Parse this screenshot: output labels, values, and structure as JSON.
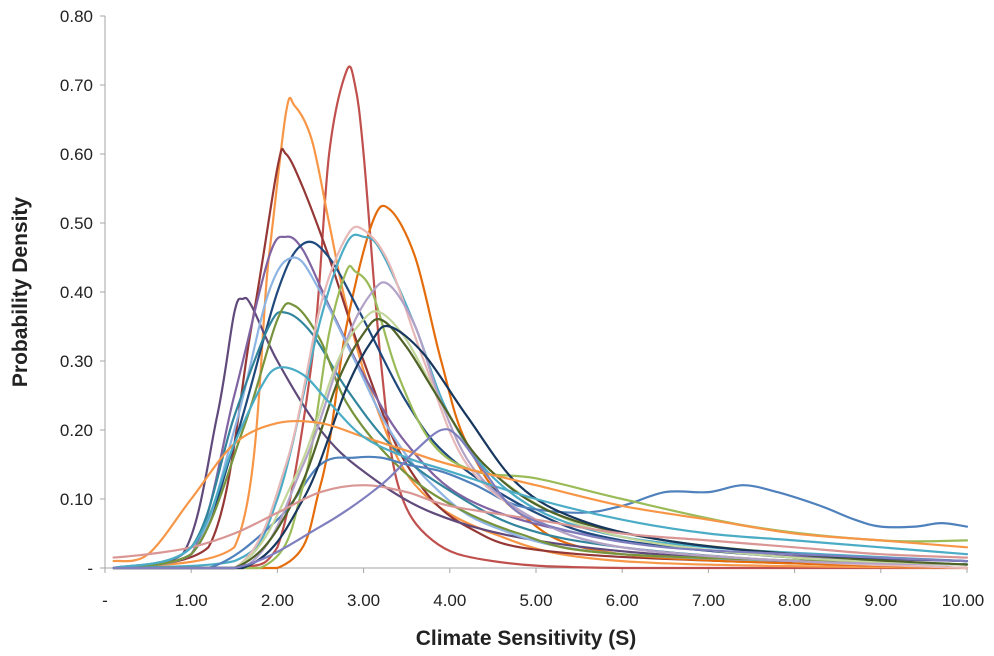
{
  "chart_data": {
    "type": "line",
    "title": "",
    "xlabel": "Climate Sensitivity (S)",
    "ylabel": "Probability Density",
    "xlim": [
      0,
      10
    ],
    "ylim": [
      0,
      0.8
    ],
    "x_ticks": [
      "-",
      "1.00",
      "2.00",
      "3.00",
      "4.00",
      "5.00",
      "6.00",
      "7.00",
      "8.00",
      "9.00",
      "10.00"
    ],
    "y_ticks": [
      "-",
      "0.10",
      "0.20",
      "0.30",
      "0.40",
      "0.50",
      "0.60",
      "0.70",
      "0.80"
    ],
    "grid": false,
    "legend": "none",
    "series": [
      {
        "color": "#c0504d",
        "x": [
          0.1,
          1.5,
          2.0,
          2.4,
          2.6,
          2.8,
          2.9,
          3.0,
          3.2,
          3.4,
          3.8,
          4.5,
          6.0,
          10.0
        ],
        "values": [
          0.0,
          0.0,
          0.03,
          0.3,
          0.6,
          0.72,
          0.7,
          0.6,
          0.3,
          0.12,
          0.04,
          0.01,
          0.0,
          0.0
        ]
      },
      {
        "color": "#f79646",
        "x": [
          0.1,
          1.5,
          1.9,
          2.1,
          2.2,
          2.4,
          2.6,
          2.8,
          3.1,
          3.6,
          4.5,
          6.0,
          10.0
        ],
        "values": [
          0.0,
          0.03,
          0.45,
          0.66,
          0.67,
          0.62,
          0.5,
          0.38,
          0.25,
          0.12,
          0.05,
          0.01,
          0.0
        ]
      },
      {
        "color": "#953735",
        "x": [
          0.1,
          1.2,
          1.7,
          2.0,
          2.1,
          2.3,
          2.6,
          3.0,
          3.5,
          4.2,
          5.5,
          10.0
        ],
        "values": [
          0.0,
          0.03,
          0.35,
          0.58,
          0.6,
          0.55,
          0.45,
          0.3,
          0.15,
          0.06,
          0.02,
          0.0
        ]
      },
      {
        "color": "#e46c0a",
        "x": [
          0.1,
          2.0,
          2.5,
          2.8,
          3.1,
          3.3,
          3.6,
          3.9,
          4.2,
          4.8,
          6.0,
          10.0
        ],
        "values": [
          0.0,
          0.0,
          0.12,
          0.35,
          0.5,
          0.52,
          0.45,
          0.3,
          0.18,
          0.08,
          0.02,
          0.0
        ]
      },
      {
        "color": "#604a7b",
        "x": [
          0.1,
          0.9,
          1.3,
          1.5,
          1.6,
          1.7,
          2.0,
          2.5,
          3.0,
          3.8,
          5.0,
          7.0,
          10.0
        ],
        "values": [
          0.0,
          0.02,
          0.22,
          0.37,
          0.39,
          0.38,
          0.3,
          0.2,
          0.14,
          0.08,
          0.04,
          0.015,
          0.005
        ]
      },
      {
        "color": "#8064a2",
        "x": [
          0.1,
          1.0,
          1.5,
          1.9,
          2.1,
          2.3,
          2.6,
          3.0,
          3.5,
          4.2,
          5.5,
          7.5,
          10.0
        ],
        "values": [
          0.0,
          0.02,
          0.25,
          0.45,
          0.48,
          0.46,
          0.38,
          0.28,
          0.18,
          0.1,
          0.05,
          0.02,
          0.01
        ]
      },
      {
        "color": "#1f497d",
        "x": [
          0.1,
          1.0,
          1.5,
          2.0,
          2.3,
          2.6,
          3.0,
          3.5,
          4.0,
          5.0,
          6.0,
          8.0,
          10.0
        ],
        "values": [
          0.0,
          0.02,
          0.18,
          0.4,
          0.47,
          0.45,
          0.36,
          0.24,
          0.16,
          0.08,
          0.04,
          0.015,
          0.005
        ]
      },
      {
        "color": "#8eb4e3",
        "x": [
          0.1,
          1.0,
          1.5,
          1.9,
          2.2,
          2.5,
          2.9,
          3.3,
          3.8,
          4.5,
          6.0,
          10.0
        ],
        "values": [
          0.0,
          0.02,
          0.2,
          0.4,
          0.45,
          0.4,
          0.3,
          0.2,
          0.12,
          0.06,
          0.02,
          0.005
        ]
      },
      {
        "color": "#31859c",
        "x": [
          0.1,
          1.0,
          1.5,
          1.9,
          2.1,
          2.4,
          2.8,
          3.3,
          3.9,
          4.8,
          6.0,
          8.0,
          10.0
        ],
        "values": [
          0.0,
          0.03,
          0.22,
          0.35,
          0.37,
          0.34,
          0.26,
          0.18,
          0.12,
          0.06,
          0.03,
          0.01,
          0.005
        ]
      },
      {
        "color": "#77933c",
        "x": [
          0.1,
          1.0,
          1.6,
          2.0,
          2.2,
          2.5,
          2.8,
          3.3,
          3.9,
          4.8,
          6.0,
          10.0
        ],
        "values": [
          0.0,
          0.02,
          0.2,
          0.36,
          0.38,
          0.33,
          0.24,
          0.16,
          0.1,
          0.05,
          0.02,
          0.005
        ]
      },
      {
        "color": "#4bacc6",
        "x": [
          0.1,
          1.5,
          2.0,
          2.5,
          2.8,
          3.0,
          3.2,
          3.6,
          4.0,
          4.6,
          5.5,
          7.0,
          10.0
        ],
        "values": [
          0.0,
          0.01,
          0.1,
          0.36,
          0.47,
          0.48,
          0.46,
          0.35,
          0.22,
          0.12,
          0.06,
          0.03,
          0.01
        ]
      },
      {
        "color": "#4f81bd",
        "x": [
          0.1,
          1.2,
          2.0,
          2.5,
          2.9,
          3.2,
          3.5,
          3.9,
          4.3,
          4.8,
          5.5,
          6.0,
          6.5,
          7.0,
          7.4,
          7.8,
          8.3,
          8.7,
          9.0,
          9.4,
          9.7,
          10.0
        ],
        "values": [
          0.0,
          0.0,
          0.07,
          0.15,
          0.16,
          0.16,
          0.15,
          0.14,
          0.12,
          0.09,
          0.08,
          0.09,
          0.11,
          0.11,
          0.12,
          0.11,
          0.09,
          0.07,
          0.06,
          0.06,
          0.065,
          0.06
        ]
      },
      {
        "color": "#9bbb59",
        "x": [
          0.1,
          1.8,
          2.3,
          2.6,
          2.8,
          2.9,
          3.1,
          3.4,
          3.8,
          4.3,
          5.0,
          6.0,
          7.5,
          9.0,
          10.0
        ],
        "values": [
          0.0,
          0.0,
          0.12,
          0.34,
          0.43,
          0.43,
          0.4,
          0.28,
          0.18,
          0.14,
          0.13,
          0.1,
          0.06,
          0.04,
          0.04
        ]
      },
      {
        "color": "#e6b9b8",
        "x": [
          0.1,
          1.5,
          2.1,
          2.5,
          2.8,
          3.0,
          3.3,
          3.7,
          4.2,
          5.0,
          6.0,
          8.0,
          10.0
        ],
        "values": [
          0.0,
          0.0,
          0.15,
          0.38,
          0.48,
          0.49,
          0.44,
          0.3,
          0.15,
          0.07,
          0.03,
          0.01,
          0.0
        ]
      },
      {
        "color": "#b3a2c7",
        "x": [
          0.1,
          1.6,
          2.3,
          2.8,
          3.1,
          3.3,
          3.6,
          3.9,
          4.3,
          5.0,
          6.0,
          8.0,
          10.0
        ],
        "values": [
          0.0,
          0.0,
          0.15,
          0.33,
          0.4,
          0.41,
          0.35,
          0.24,
          0.14,
          0.07,
          0.03,
          0.01,
          0.005
        ]
      },
      {
        "color": "#c3d69b",
        "x": [
          0.1,
          1.5,
          2.2,
          2.7,
          3.0,
          3.2,
          3.5,
          3.9,
          4.4,
          5.2,
          6.2,
          8.0,
          10.0
        ],
        "values": [
          0.0,
          0.0,
          0.13,
          0.3,
          0.36,
          0.37,
          0.33,
          0.24,
          0.15,
          0.08,
          0.04,
          0.015,
          0.005
        ]
      },
      {
        "color": "#4f6228",
        "x": [
          0.1,
          1.5,
          2.2,
          2.7,
          3.0,
          3.2,
          3.5,
          3.9,
          4.4,
          5.2,
          6.5,
          8.5,
          10.0
        ],
        "values": [
          0.0,
          0.0,
          0.1,
          0.27,
          0.34,
          0.36,
          0.32,
          0.24,
          0.15,
          0.08,
          0.04,
          0.015,
          0.005
        ]
      },
      {
        "color": "#17375e",
        "x": [
          0.1,
          1.6,
          2.3,
          2.8,
          3.1,
          3.3,
          3.7,
          4.2,
          4.8,
          5.5,
          6.5,
          8.0,
          10.0
        ],
        "values": [
          0.0,
          0.0,
          0.1,
          0.26,
          0.33,
          0.35,
          0.31,
          0.22,
          0.12,
          0.07,
          0.04,
          0.02,
          0.01
        ]
      },
      {
        "color": "#f79646",
        "x": [
          0.1,
          0.5,
          1.0,
          1.5,
          2.0,
          2.5,
          3.0,
          3.5,
          4.0,
          5.0,
          6.0,
          7.0,
          8.0,
          9.0,
          10.0
        ],
        "values": [
          0.01,
          0.02,
          0.1,
          0.18,
          0.21,
          0.21,
          0.19,
          0.17,
          0.15,
          0.12,
          0.09,
          0.07,
          0.05,
          0.04,
          0.03
        ]
      },
      {
        "color": "#d99694",
        "x": [
          0.1,
          0.5,
          1.0,
          1.5,
          2.0,
          2.5,
          3.0,
          3.5,
          4.0,
          5.0,
          6.0,
          7.0,
          8.0,
          9.0,
          10.0
        ],
        "values": [
          0.015,
          0.02,
          0.03,
          0.05,
          0.08,
          0.11,
          0.12,
          0.11,
          0.09,
          0.07,
          0.05,
          0.04,
          0.03,
          0.02,
          0.015
        ]
      },
      {
        "color": "#4bacc6",
        "x": [
          0.1,
          1.0,
          1.5,
          1.8,
          2.0,
          2.3,
          2.6,
          3.0,
          3.5,
          4.0,
          5.0,
          6.0,
          7.0,
          8.0,
          9.0,
          10.0
        ],
        "values": [
          0.0,
          0.03,
          0.18,
          0.26,
          0.29,
          0.28,
          0.24,
          0.19,
          0.16,
          0.14,
          0.1,
          0.07,
          0.05,
          0.04,
          0.03,
          0.02
        ]
      },
      {
        "color": "#7f7fbf",
        "x": [
          0.1,
          1.5,
          2.5,
          3.2,
          3.6,
          3.9,
          4.1,
          4.4,
          4.8,
          5.5,
          6.5,
          8.0,
          10.0
        ],
        "values": [
          0.0,
          0.0,
          0.06,
          0.12,
          0.17,
          0.2,
          0.19,
          0.14,
          0.08,
          0.05,
          0.03,
          0.02,
          0.01
        ]
      }
    ]
  }
}
